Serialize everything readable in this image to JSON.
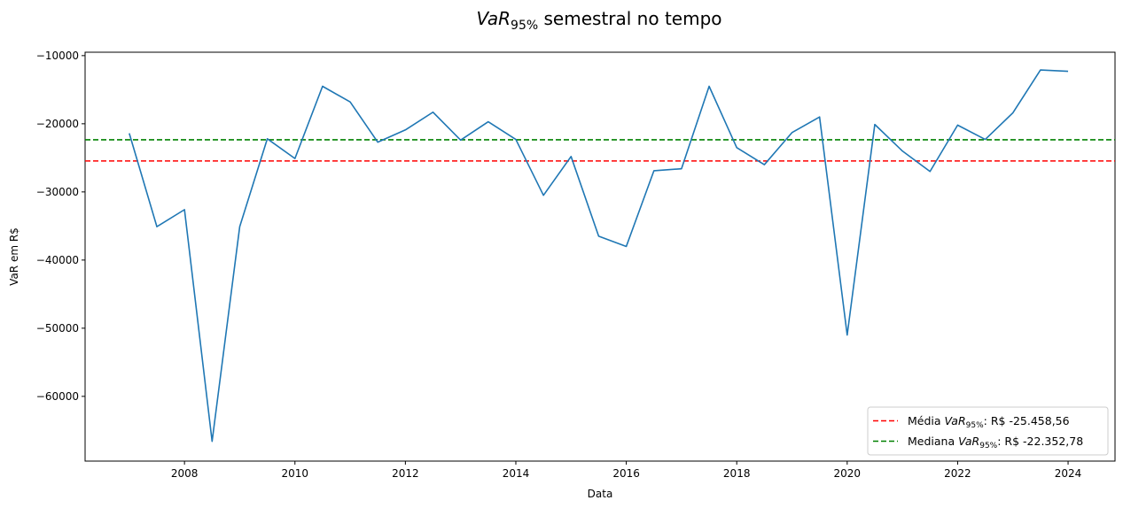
{
  "chart_data": {
    "type": "line",
    "title_main": "VaR",
    "title_sub": "95%",
    "title_rest": " semestral no tempo",
    "xlabel": "Data",
    "ylabel": "VaR em R$",
    "xlim": [
      2006.2,
      2024.85
    ],
    "ylim": [
      -69500,
      -9500
    ],
    "xticks": [
      2008,
      2010,
      2012,
      2014,
      2016,
      2018,
      2020,
      2022,
      2024
    ],
    "xtick_labels": [
      "2008",
      "2010",
      "2012",
      "2014",
      "2016",
      "2018",
      "2020",
      "2022",
      "2024"
    ],
    "yticks": [
      -60000,
      -50000,
      -40000,
      -30000,
      -20000,
      -10000
    ],
    "ytick_labels": [
      "−60000",
      "−50000",
      "−40000",
      "−30000",
      "−20000",
      "−10000"
    ],
    "series": [
      {
        "color": "#1f77b4",
        "x": [
          2007.0,
          2007.5,
          2008.0,
          2008.5,
          2009.0,
          2009.5,
          2010.0,
          2010.5,
          2011.0,
          2011.5,
          2012.0,
          2012.5,
          2013.0,
          2013.5,
          2014.0,
          2014.5,
          2015.0,
          2015.5,
          2016.0,
          2016.5,
          2017.0,
          2017.5,
          2018.0,
          2018.5,
          2019.0,
          2019.5,
          2020.0,
          2020.5,
          2021.0,
          2021.5,
          2022.0,
          2022.5,
          2023.0,
          2023.5,
          2024.0
        ],
        "y": [
          -21400,
          -35100,
          -32600,
          -66600,
          -35100,
          -22200,
          -25100,
          -14500,
          -16800,
          -22700,
          -20900,
          -18300,
          -22400,
          -19700,
          -22300,
          -30500,
          -24800,
          -36500,
          -38000,
          -26900,
          -26600,
          -14500,
          -23500,
          -26000,
          -21300,
          -19000,
          -51000,
          -20100,
          -24000,
          -27000,
          -20200,
          -22300,
          -18400,
          -12100,
          -12300
        ]
      }
    ],
    "reference_lines": [
      {
        "color": "#ff0000",
        "y": -25458.56,
        "legend_prefix": "Média ",
        "legend_var": "VaR",
        "legend_sub": "95%",
        "legend_suffix": ": R$ -25.458,56"
      },
      {
        "color": "#008000",
        "y": -22352.78,
        "legend_prefix": "Mediana ",
        "legend_var": "VaR",
        "legend_sub": "95%",
        "legend_suffix": ": R$ -22.352,78"
      }
    ],
    "legend_position": "lower-right",
    "grid": false
  }
}
